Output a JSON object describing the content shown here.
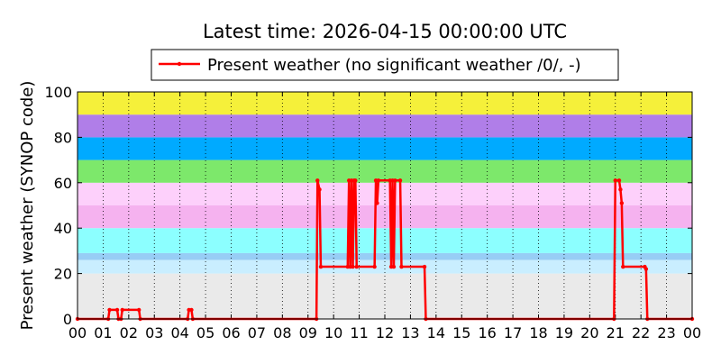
{
  "chart_data": {
    "type": "line",
    "title": "Latest time: 2026-04-15 00:00:00 UTC",
    "ylabel": "Present weather (SYNOP code)",
    "xlim": [
      0,
      24
    ],
    "ylim": [
      0,
      100
    ],
    "yticks": [
      0,
      20,
      40,
      60,
      80,
      100
    ],
    "xticks": [
      {
        "value": 0,
        "label": "00"
      },
      {
        "value": 1,
        "label": "01"
      },
      {
        "value": 2,
        "label": "02"
      },
      {
        "value": 3,
        "label": "03"
      },
      {
        "value": 4,
        "label": "04"
      },
      {
        "value": 5,
        "label": "05"
      },
      {
        "value": 6,
        "label": "06"
      },
      {
        "value": 7,
        "label": "07"
      },
      {
        "value": 8,
        "label": "08"
      },
      {
        "value": 9,
        "label": "09"
      },
      {
        "value": 10,
        "label": "10"
      },
      {
        "value": 11,
        "label": "11"
      },
      {
        "value": 12,
        "label": "12"
      },
      {
        "value": 13,
        "label": "13"
      },
      {
        "value": 14,
        "label": "14"
      },
      {
        "value": 15,
        "label": "15"
      },
      {
        "value": 16,
        "label": "16"
      },
      {
        "value": 17,
        "label": "17"
      },
      {
        "value": 18,
        "label": "18"
      },
      {
        "value": 19,
        "label": "19"
      },
      {
        "value": 20,
        "label": "20"
      },
      {
        "value": 21,
        "label": "21"
      },
      {
        "value": 22,
        "label": "22"
      },
      {
        "value": 23,
        "label": "23"
      },
      {
        "value": 24,
        "label": "00"
      }
    ],
    "grid": "x",
    "legend": "top",
    "bands": [
      {
        "from": 0,
        "to": 20,
        "color": "#eaeaea"
      },
      {
        "from": 20,
        "to": 26,
        "color": "#c9eeff"
      },
      {
        "from": 26,
        "to": 29,
        "color": "#97cdf5"
      },
      {
        "from": 29,
        "to": 40,
        "color": "#8cffff"
      },
      {
        "from": 40,
        "to": 50,
        "color": "#f5b2ef"
      },
      {
        "from": 50,
        "to": 60,
        "color": "#fdd0fb"
      },
      {
        "from": 60,
        "to": 70,
        "color": "#7de86b"
      },
      {
        "from": 70,
        "to": 80,
        "color": "#00aaff"
      },
      {
        "from": 80,
        "to": 90,
        "color": "#b07ee8"
      },
      {
        "from": 90,
        "to": 100,
        "color": "#f5f03a"
      }
    ],
    "x": [
      0,
      1.2,
      1.25,
      1.55,
      1.6,
      1.7,
      1.75,
      2.4,
      2.45,
      4.3,
      4.35,
      4.45,
      4.5,
      9.33,
      9.37,
      9.45,
      9.5,
      10.55,
      10.6,
      10.65,
      10.7,
      10.75,
      10.8,
      10.85,
      10.9,
      11.6,
      11.65,
      11.7,
      11.75,
      12.2,
      12.25,
      12.3,
      12.35,
      12.4,
      12.6,
      12.65,
      13.55,
      13.6,
      20.95,
      21.0,
      21.15,
      21.2,
      21.25,
      21.3,
      22.15,
      22.2,
      22.25,
      24
    ],
    "series": [
      {
        "name": "Present weather (no significant weather /0/, -)",
        "color": "#ff0000",
        "values": [
          0,
          0,
          4,
          4,
          0,
          0,
          4,
          4,
          0,
          0,
          4,
          4,
          0,
          0,
          61,
          57,
          23,
          23,
          61,
          23,
          61,
          23,
          61,
          61,
          23,
          23,
          61,
          51,
          61,
          61,
          23,
          61,
          23,
          61,
          61,
          23,
          23,
          0,
          0,
          61,
          61,
          57,
          51,
          23,
          23,
          22,
          0,
          0
        ]
      }
    ]
  }
}
